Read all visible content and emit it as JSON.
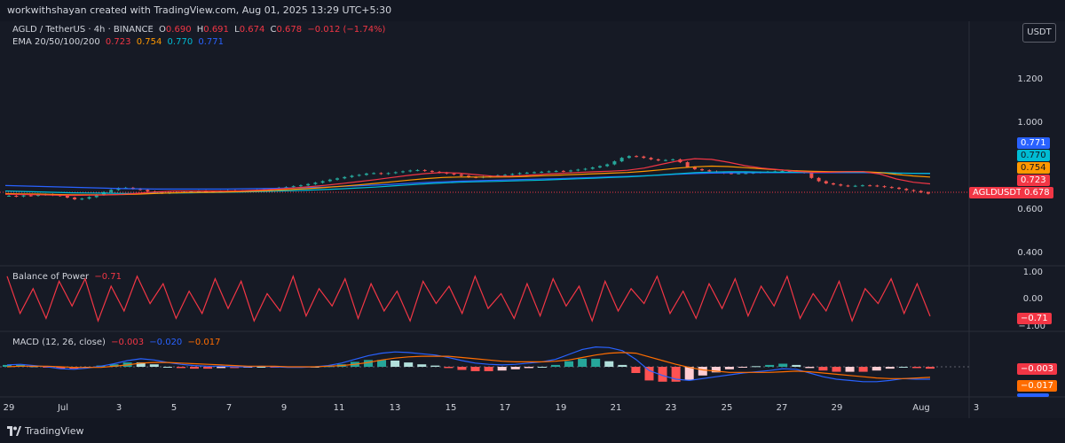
{
  "header": {
    "attribution": "workwithshayan created with TradingView.com, Aug 01, 2025 13:29 UTC+5:30"
  },
  "legend": {
    "symbol": "AGLD / TetherUS · 4h · BINANCE",
    "ohlc": {
      "o_label": "O",
      "o": "0.690",
      "h_label": "H",
      "h": "0.691",
      "l_label": "L",
      "l": "0.674",
      "c_label": "C",
      "c": "0.678",
      "change": "−0.012 (−1.74%)"
    },
    "ema_label": "EMA 20/50/100/200",
    "ema_values": [
      "0.723",
      "0.754",
      "0.770",
      "0.771"
    ]
  },
  "currency_button": "USDT",
  "price_axis": {
    "ticks": [
      "1.200",
      "1.000",
      "0.600",
      "0.400"
    ],
    "badges": {
      "ema200": "0.771",
      "ema100": "0.770",
      "ema50": "0.754",
      "ema20": "0.723",
      "symbol": "AGLDUSDT",
      "price": "0.678"
    }
  },
  "bop": {
    "label": "Balance of Power",
    "value": "−0.71",
    "ticks": [
      "1.00",
      "0.00",
      "−1.00"
    ],
    "badge": "−0.71"
  },
  "macd": {
    "label": "MACD (12, 26, close)",
    "values": [
      "−0.003",
      "−0.020",
      "−0.017"
    ],
    "badges": [
      "−0.003",
      "−0.017"
    ]
  },
  "time_axis": {
    "labels": [
      "29",
      "Jul",
      "3",
      "5",
      "7",
      "9",
      "11",
      "13",
      "15",
      "17",
      "19",
      "21",
      "23",
      "25",
      "27",
      "29",
      "Aug",
      "3"
    ]
  },
  "footer": {
    "brand": "TradingView"
  },
  "colors": {
    "up": "#26a69a",
    "down": "#ef5350",
    "ema20": "#f23645",
    "ema50": "#ff9800",
    "ema100": "#00bcd4",
    "ema200": "#2962ff",
    "bop": "#f23645",
    "macd_line": "#2962ff",
    "signal_line": "#ff6d00"
  },
  "chart_data": {
    "type": "candlestick",
    "price_series": [
      0.668,
      0.665,
      0.67,
      0.668,
      0.672,
      0.675,
      0.671,
      0.668,
      0.66,
      0.652,
      0.655,
      0.662,
      0.672,
      0.685,
      0.695,
      0.703,
      0.705,
      0.7,
      0.695,
      0.688,
      0.684,
      0.68,
      0.682,
      0.684,
      0.686,
      0.688,
      0.69,
      0.688,
      0.686,
      0.689,
      0.692,
      0.69,
      0.688,
      0.69,
      0.694,
      0.698,
      0.7,
      0.705,
      0.708,
      0.712,
      0.716,
      0.722,
      0.728,
      0.735,
      0.742,
      0.748,
      0.754,
      0.76,
      0.764,
      0.77,
      0.772,
      0.768,
      0.772,
      0.776,
      0.78,
      0.784,
      0.786,
      0.782,
      0.778,
      0.774,
      0.77,
      0.766,
      0.76,
      0.754,
      0.752,
      0.755,
      0.758,
      0.762,
      0.764,
      0.768,
      0.772,
      0.774,
      0.776,
      0.778,
      0.78,
      0.782,
      0.78,
      0.784,
      0.788,
      0.792,
      0.798,
      0.804,
      0.812,
      0.826,
      0.842,
      0.85,
      0.848,
      0.842,
      0.835,
      0.83,
      0.832,
      0.835,
      0.822,
      0.8,
      0.79,
      0.785,
      0.78,
      0.776,
      0.772,
      0.77,
      0.771,
      0.772,
      0.774,
      0.776,
      0.778,
      0.78,
      0.782,
      0.781,
      0.778,
      0.774,
      0.75,
      0.735,
      0.725,
      0.72,
      0.715,
      0.712,
      0.714,
      0.716,
      0.715,
      0.712,
      0.708,
      0.705,
      0.7,
      0.694,
      0.69,
      0.684,
      0.678
    ],
    "ema20": [
      0.675,
      0.674,
      0.673,
      0.671,
      0.67,
      0.671,
      0.672,
      0.675,
      0.68,
      0.686,
      0.69,
      0.69,
      0.69,
      0.69,
      0.691,
      0.694,
      0.698,
      0.703,
      0.709,
      0.716,
      0.724,
      0.733,
      0.742,
      0.752,
      0.762,
      0.77,
      0.775,
      0.772,
      0.765,
      0.758,
      0.758,
      0.762,
      0.767,
      0.771,
      0.775,
      0.778,
      0.781,
      0.785,
      0.795,
      0.812,
      0.828,
      0.838,
      0.835,
      0.822,
      0.806,
      0.795,
      0.788,
      0.78,
      0.776,
      0.776,
      0.778,
      0.779,
      0.768,
      0.745,
      0.73,
      0.723
    ],
    "ema50": [
      0.678,
      0.677,
      0.676,
      0.674,
      0.673,
      0.673,
      0.673,
      0.674,
      0.676,
      0.679,
      0.682,
      0.683,
      0.684,
      0.685,
      0.687,
      0.69,
      0.693,
      0.697,
      0.701,
      0.706,
      0.712,
      0.718,
      0.725,
      0.732,
      0.74,
      0.747,
      0.752,
      0.754,
      0.754,
      0.754,
      0.755,
      0.757,
      0.76,
      0.763,
      0.766,
      0.769,
      0.772,
      0.775,
      0.78,
      0.787,
      0.795,
      0.801,
      0.804,
      0.802,
      0.797,
      0.792,
      0.787,
      0.783,
      0.78,
      0.779,
      0.779,
      0.779,
      0.775,
      0.766,
      0.759,
      0.754
    ],
    "ema100": [
      0.69,
      0.688,
      0.686,
      0.684,
      0.682,
      0.681,
      0.68,
      0.679,
      0.679,
      0.68,
      0.681,
      0.682,
      0.683,
      0.684,
      0.685,
      0.687,
      0.689,
      0.691,
      0.694,
      0.697,
      0.7,
      0.704,
      0.708,
      0.713,
      0.718,
      0.723,
      0.727,
      0.73,
      0.732,
      0.734,
      0.736,
      0.738,
      0.74,
      0.743,
      0.746,
      0.749,
      0.752,
      0.755,
      0.759,
      0.764,
      0.769,
      0.774,
      0.777,
      0.778,
      0.778,
      0.777,
      0.776,
      0.776,
      0.776,
      0.776,
      0.776,
      0.776,
      0.775,
      0.772,
      0.771,
      0.77
    ],
    "ema200": [
      0.715,
      0.713,
      0.711,
      0.709,
      0.707,
      0.705,
      0.703,
      0.701,
      0.7,
      0.699,
      0.699,
      0.699,
      0.699,
      0.699,
      0.7,
      0.701,
      0.702,
      0.704,
      0.706,
      0.708,
      0.711,
      0.714,
      0.717,
      0.721,
      0.725,
      0.729,
      0.732,
      0.735,
      0.737,
      0.739,
      0.741,
      0.743,
      0.745,
      0.747,
      0.75,
      0.752,
      0.755,
      0.757,
      0.76,
      0.763,
      0.767,
      0.77,
      0.772,
      0.773,
      0.774,
      0.774,
      0.774,
      0.774,
      0.774,
      0.774,
      0.774,
      0.774,
      0.773,
      0.772,
      0.771,
      0.771
    ],
    "bop": [
      0.9,
      -0.6,
      0.4,
      -0.8,
      0.7,
      -0.3,
      0.8,
      -0.9,
      0.5,
      -0.5,
      0.9,
      -0.2,
      0.6,
      -0.8,
      0.3,
      -0.6,
      0.8,
      -0.4,
      0.7,
      -0.9,
      0.2,
      -0.5,
      0.9,
      -0.7,
      0.4,
      -0.3,
      0.8,
      -0.8,
      0.6,
      -0.5,
      0.3,
      -0.9,
      0.7,
      -0.2,
      0.5,
      -0.6,
      0.9,
      -0.4,
      0.2,
      -0.8,
      0.6,
      -0.7,
      0.8,
      -0.3,
      0.5,
      -0.9,
      0.7,
      -0.5,
      0.4,
      -0.2,
      0.9,
      -0.6,
      0.3,
      -0.8,
      0.6,
      -0.4,
      0.8,
      -0.7,
      0.5,
      -0.3,
      0.9,
      -0.8,
      0.2,
      -0.5,
      0.7,
      -0.9,
      0.4,
      -0.2,
      0.8,
      -0.6,
      0.6,
      -0.71
    ],
    "macd": [
      0.003,
      0.004,
      0.002,
      0.0,
      -0.003,
      -0.004,
      -0.002,
      0.001,
      0.005,
      0.01,
      0.013,
      0.011,
      0.007,
      0.004,
      0.002,
      0.001,
      0.001,
      0.0,
      0.0,
      0.001,
      0.0,
      -0.001,
      -0.001,
      0.0,
      0.002,
      0.006,
      0.012,
      0.018,
      0.022,
      0.024,
      0.023,
      0.021,
      0.019,
      0.015,
      0.01,
      0.006,
      0.004,
      0.003,
      0.004,
      0.006,
      0.008,
      0.012,
      0.02,
      0.028,
      0.032,
      0.031,
      0.026,
      0.012,
      -0.006,
      -0.014,
      -0.02,
      -0.022,
      -0.019,
      -0.016,
      -0.013,
      -0.01,
      -0.008,
      -0.006,
      -0.003,
      -0.004,
      -0.01,
      -0.016,
      -0.02,
      -0.022,
      -0.024,
      -0.024,
      -0.022,
      -0.019,
      -0.02,
      -0.02
    ],
    "signal": [
      0.0,
      0.001,
      0.001,
      0.001,
      0.0,
      -0.001,
      -0.001,
      -0.001,
      0.001,
      0.003,
      0.006,
      0.007,
      0.007,
      0.006,
      0.005,
      0.004,
      0.003,
      0.002,
      0.001,
      0.001,
      0.001,
      0.0,
      0.0,
      0.0,
      0.001,
      0.002,
      0.004,
      0.007,
      0.011,
      0.014,
      0.016,
      0.017,
      0.017,
      0.017,
      0.015,
      0.013,
      0.011,
      0.009,
      0.008,
      0.008,
      0.008,
      0.009,
      0.011,
      0.015,
      0.019,
      0.022,
      0.023,
      0.022,
      0.016,
      0.01,
      0.004,
      -0.001,
      -0.005,
      -0.007,
      -0.009,
      -0.009,
      -0.009,
      -0.009,
      -0.008,
      -0.007,
      -0.008,
      -0.01,
      -0.012,
      -0.014,
      -0.016,
      -0.018,
      -0.019,
      -0.019,
      -0.018,
      -0.017
    ],
    "ylim_price": [
      0.4,
      1.3
    ],
    "ylim_bop": [
      -1.2,
      1.2
    ],
    "ylim_macd": [
      -0.04,
      0.04
    ]
  }
}
